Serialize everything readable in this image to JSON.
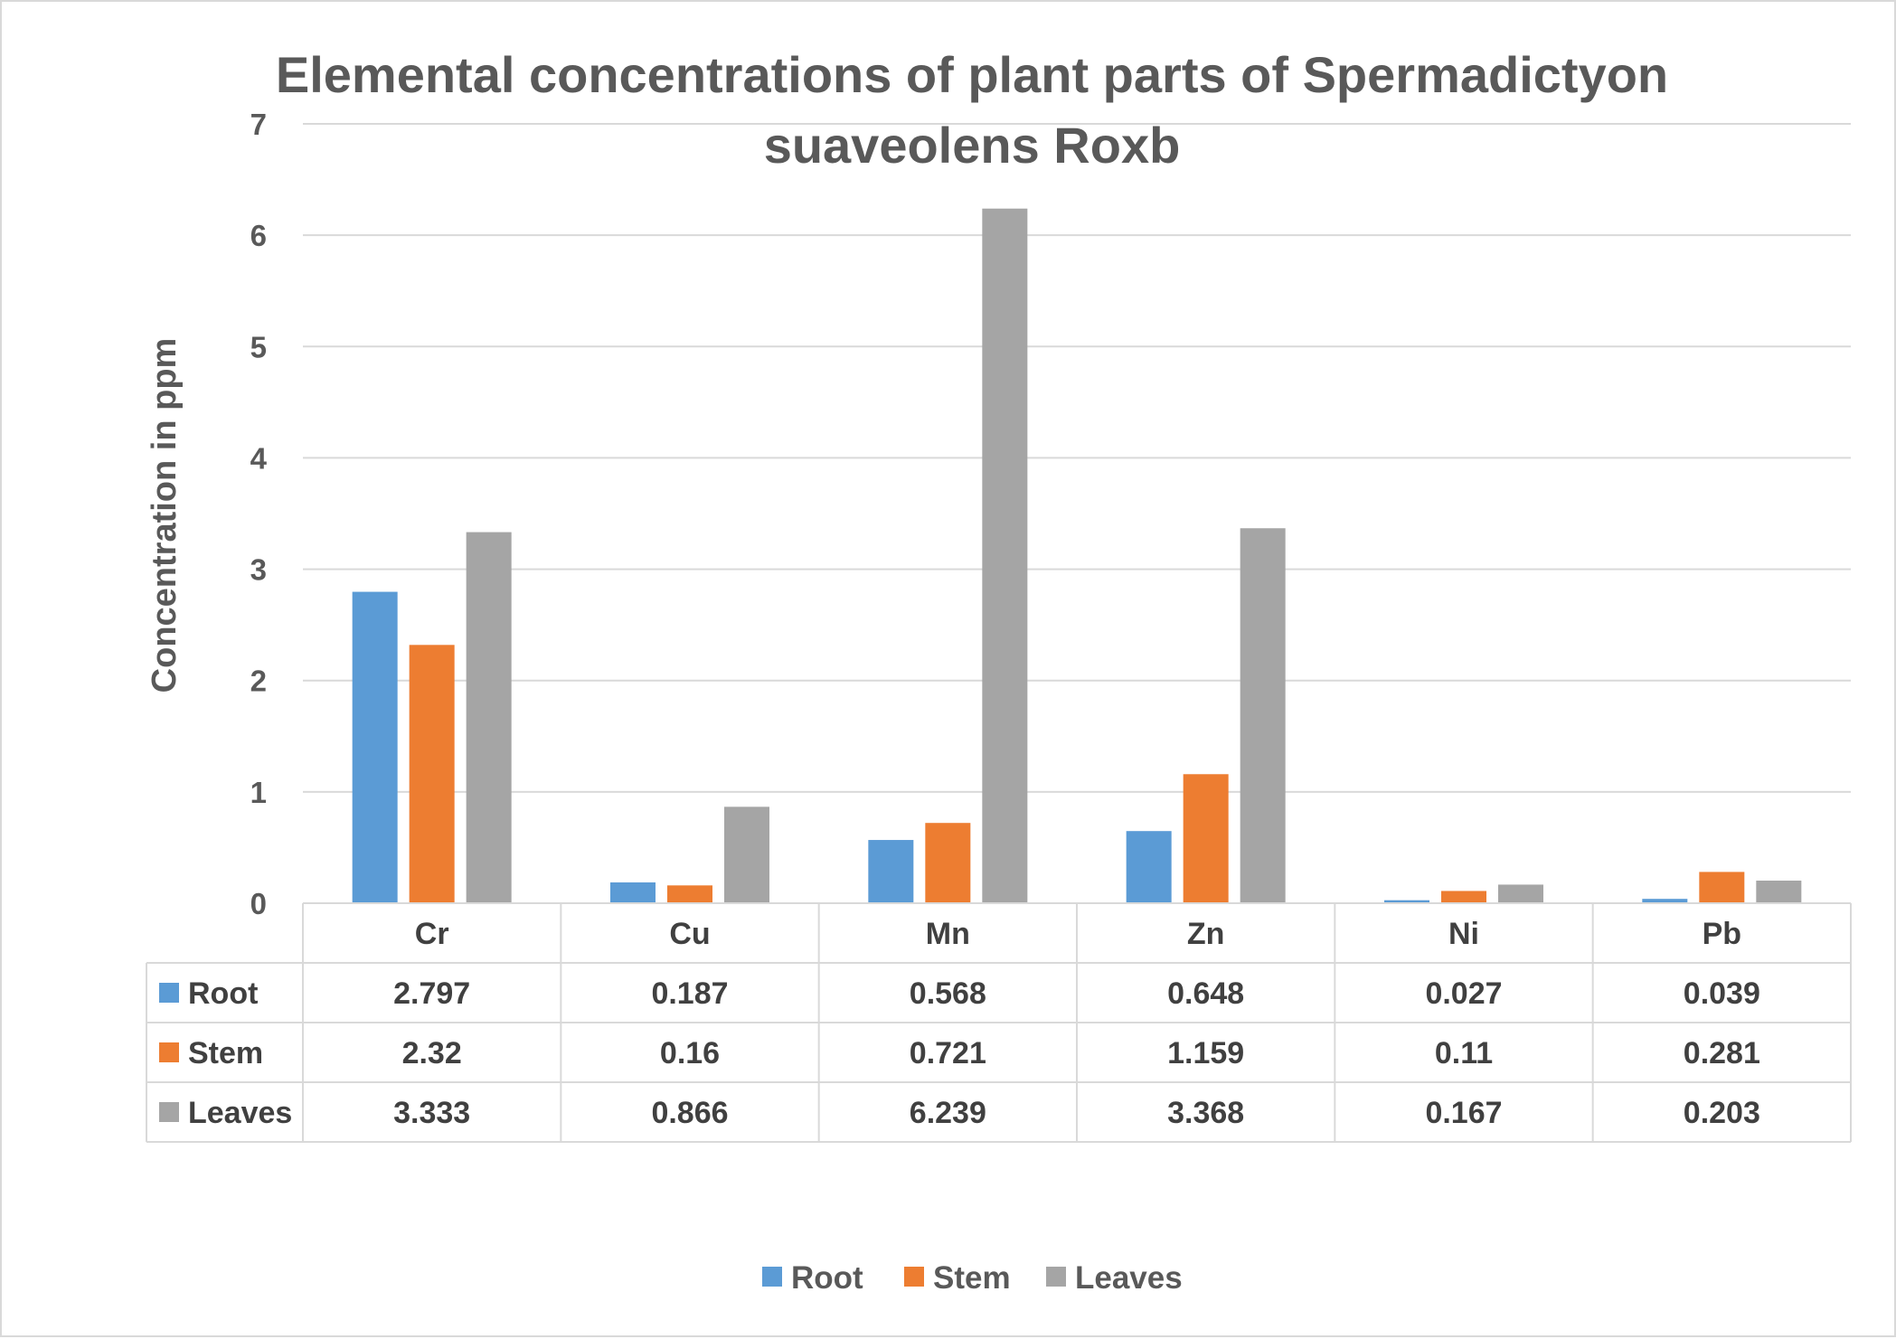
{
  "chart_data": {
    "type": "bar",
    "title": "Elemental concentrations of plant parts of Spermadictyon suaveolens Roxb",
    "title_lines": [
      "Elemental concentrations of plant parts of Spermadictyon",
      "suaveolens Roxb"
    ],
    "ylabel": "Concentration in ppm",
    "xlabel": "",
    "ylim": [
      0,
      7
    ],
    "yticks": [
      0,
      1,
      2,
      3,
      4,
      5,
      6,
      7
    ],
    "grid": true,
    "legend_position": "bottom",
    "data_table": true,
    "categories": [
      "Cr",
      "Cu",
      "Mn",
      "Zn",
      "Ni",
      "Pb"
    ],
    "series": [
      {
        "name": "Root",
        "color": "#5b9bd5",
        "values": [
          2.797,
          0.187,
          0.568,
          0.648,
          0.027,
          0.039
        ],
        "labels": [
          "2.797",
          "0.187",
          "0.568",
          "0.648",
          "0.027",
          "0.039"
        ]
      },
      {
        "name": "Stem",
        "color": "#ed7d31",
        "values": [
          2.32,
          0.16,
          0.721,
          1.159,
          0.11,
          0.281
        ],
        "labels": [
          "2.32",
          "0.16",
          "0.721",
          "1.159",
          "0.11",
          "0.281"
        ]
      },
      {
        "name": "Leaves",
        "color": "#a5a5a5",
        "values": [
          3.333,
          0.866,
          6.239,
          3.368,
          0.167,
          0.203
        ],
        "labels": [
          "3.333",
          "0.866",
          "6.239",
          "3.368",
          "0.167",
          "0.203"
        ]
      }
    ]
  }
}
